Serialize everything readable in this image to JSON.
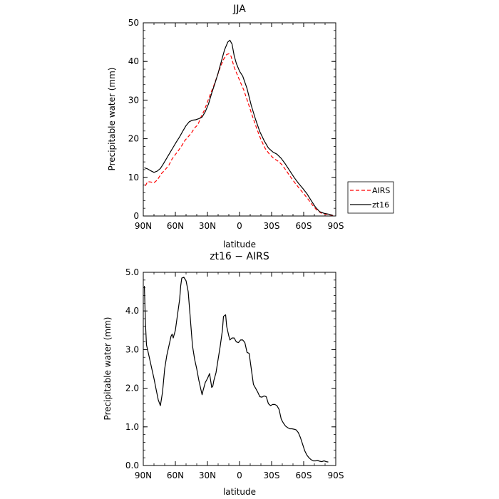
{
  "chart_data": [
    {
      "type": "line",
      "title": "JJA",
      "xlabel": "latitude",
      "ylabel": "Precipitable water (mm)",
      "xlim": [
        90,
        -90
      ],
      "ylim": [
        0,
        50
      ],
      "x_ticks": [
        90,
        60,
        30,
        0,
        -30,
        -60,
        -90
      ],
      "x_tick_labels": [
        "90N",
        "60N",
        "30N",
        "0",
        "30S",
        "60S",
        "90S"
      ],
      "y_ticks": [
        0,
        10,
        20,
        30,
        40,
        50
      ],
      "y_tick_labels": [
        "0",
        "10",
        "20",
        "30",
        "40",
        "50"
      ],
      "grid": false,
      "legend_placement": "right",
      "series": [
        {
          "name": "AIRS",
          "color": "#ff0000",
          "style": "dashed",
          "points": [
            [
              88,
              7.8
            ],
            [
              86,
              8.9
            ],
            [
              83,
              8.8
            ],
            [
              80,
              8.6
            ],
            [
              77,
              9.3
            ],
            [
              73,
              11.0
            ],
            [
              70,
              11.8
            ],
            [
              66,
              13.2
            ],
            [
              63,
              14.8
            ],
            [
              60,
              15.9
            ],
            [
              57,
              17.0
            ],
            [
              54,
              18.2
            ],
            [
              51,
              19.6
            ],
            [
              48,
              20.5
            ],
            [
              45,
              21.5
            ],
            [
              42,
              22.8
            ],
            [
              39,
              23.6
            ],
            [
              36,
              25.6
            ],
            [
              33,
              27.3
            ],
            [
              30,
              29.5
            ],
            [
              27,
              31.7
            ],
            [
              24,
              33.8
            ],
            [
              21,
              36.1
            ],
            [
              18,
              38.5
            ],
            [
              15,
              40.5
            ],
            [
              12,
              41.8
            ],
            [
              10,
              42.0
            ],
            [
              8,
              41.4
            ],
            [
              5,
              38.5
            ],
            [
              2,
              36.5
            ],
            [
              -1,
              34.5
            ],
            [
              -4,
              32.6
            ],
            [
              -8,
              29.3
            ],
            [
              -12,
              25.9
            ],
            [
              -16,
              22.7
            ],
            [
              -20,
              19.8
            ],
            [
              -24,
              17.5
            ],
            [
              -28,
              16.0
            ],
            [
              -32,
              14.9
            ],
            [
              -36,
              14.2
            ],
            [
              -40,
              13.2
            ],
            [
              -44,
              11.6
            ],
            [
              -48,
              10.0
            ],
            [
              -52,
              8.5
            ],
            [
              -56,
              7.1
            ],
            [
              -60,
              5.8
            ],
            [
              -64,
              4.4
            ],
            [
              -68,
              2.9
            ],
            [
              -72,
              1.6
            ],
            [
              -76,
              0.8
            ],
            [
              -80,
              0.5
            ],
            [
              -84,
              0.3
            ],
            [
              -88,
              0.1
            ]
          ]
        },
        {
          "name": "zt16",
          "color": "#000000",
          "style": "solid",
          "points": [
            [
              89,
              12.5
            ],
            [
              86,
              12.2
            ],
            [
              83,
              11.7
            ],
            [
              80,
              11.3
            ],
            [
              77,
              11.6
            ],
            [
              74,
              12.3
            ],
            [
              71,
              13.6
            ],
            [
              68,
              15.0
            ],
            [
              65,
              16.4
            ],
            [
              62,
              17.8
            ],
            [
              59,
              19.2
            ],
            [
              56,
              20.5
            ],
            [
              53,
              22.0
            ],
            [
              50,
              23.4
            ],
            [
              47,
              24.4
            ],
            [
              44,
              24.8
            ],
            [
              41,
              24.9
            ],
            [
              38,
              25.2
            ],
            [
              35,
              25.6
            ],
            [
              32,
              27.0
            ],
            [
              29,
              29.0
            ],
            [
              26,
              31.8
            ],
            [
              23,
              34.3
            ],
            [
              20,
              37.0
            ],
            [
              17,
              40.0
            ],
            [
              14,
              43.0
            ],
            [
              11,
              45.0
            ],
            [
              9,
              45.5
            ],
            [
              7,
              44.5
            ],
            [
              5,
              41.5
            ],
            [
              3,
              39.5
            ],
            [
              0,
              37.5
            ],
            [
              -3,
              36.2
            ],
            [
              -7,
              33.0
            ],
            [
              -11,
              28.6
            ],
            [
              -15,
              25.0
            ],
            [
              -19,
              21.8
            ],
            [
              -23,
              19.5
            ],
            [
              -27,
              17.6
            ],
            [
              -31,
              16.6
            ],
            [
              -35,
              16.0
            ],
            [
              -39,
              14.9
            ],
            [
              -43,
              13.4
            ],
            [
              -47,
              11.7
            ],
            [
              -51,
              10.0
            ],
            [
              -55,
              8.5
            ],
            [
              -59,
              7.2
            ],
            [
              -63,
              5.8
            ],
            [
              -67,
              4.0
            ],
            [
              -71,
              2.3
            ],
            [
              -75,
              1.1
            ],
            [
              -79,
              0.7
            ],
            [
              -83,
              0.5
            ],
            [
              -87,
              0.2
            ]
          ]
        }
      ]
    },
    {
      "type": "line",
      "title": "zt16 − AIRS",
      "xlabel": "latitude",
      "ylabel": "Precipitable water (mm)",
      "xlim": [
        90,
        -90
      ],
      "ylim": [
        0,
        5
      ],
      "x_ticks": [
        90,
        60,
        30,
        0,
        -30,
        -60,
        -90
      ],
      "x_tick_labels": [
        "90N",
        "60N",
        "30N",
        "0",
        "30S",
        "60S",
        "90S"
      ],
      "y_ticks": [
        0,
        1,
        2,
        3,
        4,
        5
      ],
      "y_tick_labels": [
        "0.0",
        "1.0",
        "2.0",
        "3.0",
        "4.0",
        "5.0"
      ],
      "grid": false,
      "series": [
        {
          "color": "#000000",
          "style": "solid",
          "points": [
            [
              89,
              4.65
            ],
            [
              88,
              3.7
            ],
            [
              87,
              3.12
            ],
            [
              86,
              3.0
            ],
            [
              84,
              2.75
            ],
            [
              82,
              2.5
            ],
            [
              80,
              2.25
            ],
            [
              78,
              1.97
            ],
            [
              76,
              1.7
            ],
            [
              74,
              1.55
            ],
            [
              72,
              1.9
            ],
            [
              70,
              2.5
            ],
            [
              68,
              2.85
            ],
            [
              66,
              3.1
            ],
            [
              64,
              3.35
            ],
            [
              63,
              3.4
            ],
            [
              62,
              3.3
            ],
            [
              60,
              3.5
            ],
            [
              58,
              3.9
            ],
            [
              56,
              4.3
            ],
            [
              55,
              4.65
            ],
            [
              54,
              4.85
            ],
            [
              52,
              4.87
            ],
            [
              50,
              4.78
            ],
            [
              48,
              4.5
            ],
            [
              46,
              3.8
            ],
            [
              44,
              3.1
            ],
            [
              42,
              2.75
            ],
            [
              40,
              2.5
            ],
            [
              38,
              2.2
            ],
            [
              36,
              1.95
            ],
            [
              35,
              1.83
            ],
            [
              34,
              1.95
            ],
            [
              32,
              2.15
            ],
            [
              30,
              2.25
            ],
            [
              28,
              2.38
            ],
            [
              27,
              2.2
            ],
            [
              26,
              2.02
            ],
            [
              25,
              2.05
            ],
            [
              24,
              2.2
            ],
            [
              22,
              2.4
            ],
            [
              20,
              2.75
            ],
            [
              18,
              3.1
            ],
            [
              16,
              3.5
            ],
            [
              15,
              3.86
            ],
            [
              13,
              3.9
            ],
            [
              12,
              3.6
            ],
            [
              10,
              3.35
            ],
            [
              9,
              3.25
            ],
            [
              7,
              3.3
            ],
            [
              5,
              3.3
            ],
            [
              3,
              3.2
            ],
            [
              1,
              3.18
            ],
            [
              -1,
              3.25
            ],
            [
              -3,
              3.25
            ],
            [
              -5,
              3.18
            ],
            [
              -7,
              2.93
            ],
            [
              -9,
              2.9
            ],
            [
              -11,
              2.5
            ],
            [
              -13,
              2.1
            ],
            [
              -15,
              2.0
            ],
            [
              -17,
              1.9
            ],
            [
              -19,
              1.78
            ],
            [
              -21,
              1.77
            ],
            [
              -23,
              1.8
            ],
            [
              -25,
              1.78
            ],
            [
              -27,
              1.6
            ],
            [
              -29,
              1.55
            ],
            [
              -31,
              1.58
            ],
            [
              -33,
              1.58
            ],
            [
              -35,
              1.55
            ],
            [
              -37,
              1.45
            ],
            [
              -39,
              1.2
            ],
            [
              -41,
              1.1
            ],
            [
              -43,
              1.02
            ],
            [
              -45,
              0.98
            ],
            [
              -47,
              0.95
            ],
            [
              -49,
              0.95
            ],
            [
              -51,
              0.94
            ],
            [
              -53,
              0.92
            ],
            [
              -55,
              0.85
            ],
            [
              -57,
              0.72
            ],
            [
              -59,
              0.55
            ],
            [
              -61,
              0.38
            ],
            [
              -63,
              0.27
            ],
            [
              -65,
              0.2
            ],
            [
              -67,
              0.15
            ],
            [
              -69,
              0.12
            ],
            [
              -71,
              0.12
            ],
            [
              -73,
              0.13
            ],
            [
              -75,
              0.11
            ],
            [
              -77,
              0.1
            ],
            [
              -79,
              0.12
            ],
            [
              -81,
              0.1
            ],
            [
              -83,
              0.09
            ]
          ]
        }
      ]
    }
  ]
}
